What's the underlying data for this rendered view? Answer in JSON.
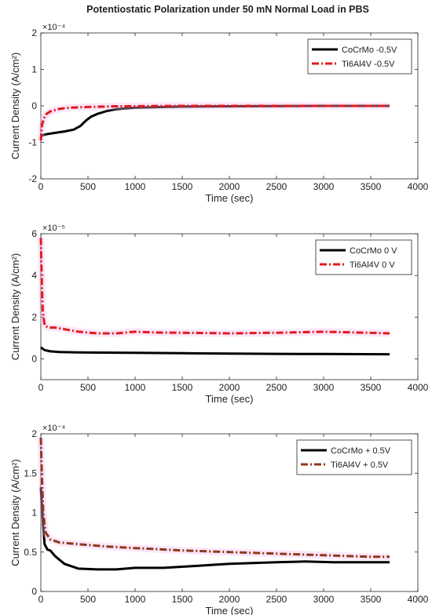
{
  "figure": {
    "title": "Potentiostatic Polarization under 50 mN Normal Load in PBS"
  },
  "chart_data": [
    {
      "type": "line",
      "xlabel": "Time (sec)",
      "ylabel": "Current Density (A/cm²)",
      "exponent": "×10⁻⁴",
      "y_scale_factor": 0.0001,
      "xlim": [
        0,
        4000
      ],
      "ylim": [
        -2,
        2
      ],
      "xticks": [
        0,
        500,
        1000,
        1500,
        2000,
        2500,
        3000,
        3500,
        4000
      ],
      "yticks": [
        -2,
        -1,
        0,
        1,
        2
      ],
      "ytick_labels": [
        "-2",
        "-1",
        "0",
        "1",
        "2"
      ],
      "legend": "top-right",
      "grid": false,
      "series": [
        {
          "name": "CoCrMo -0.5V",
          "color": "#000000",
          "dash": "solid",
          "points": [
            [
              0,
              -0.82
            ],
            [
              50,
              -0.78
            ],
            [
              150,
              -0.74
            ],
            [
              250,
              -0.7
            ],
            [
              350,
              -0.65
            ],
            [
              420,
              -0.55
            ],
            [
              480,
              -0.4
            ],
            [
              530,
              -0.3
            ],
            [
              600,
              -0.22
            ],
            [
              700,
              -0.14
            ],
            [
              800,
              -0.09
            ],
            [
              1000,
              -0.05
            ],
            [
              1500,
              -0.02
            ],
            [
              2000,
              -0.01
            ],
            [
              3000,
              0.0
            ],
            [
              3700,
              0.0
            ]
          ]
        },
        {
          "name": "Ti6Al4V -0.5V",
          "color": "#e31a1c",
          "dash": "dashdot",
          "points": [
            [
              0,
              -0.95
            ],
            [
              10,
              -0.55
            ],
            [
              30,
              -0.35
            ],
            [
              60,
              -0.22
            ],
            [
              100,
              -0.15
            ],
            [
              200,
              -0.08
            ],
            [
              300,
              -0.05
            ],
            [
              500,
              -0.03
            ],
            [
              800,
              -0.01
            ],
            [
              1500,
              0.0
            ],
            [
              3700,
              0.0
            ]
          ]
        }
      ]
    },
    {
      "type": "line",
      "xlabel": "Time (sec)",
      "ylabel": "Current Density (A/cm²)",
      "exponent": "×10⁻⁵",
      "y_scale_factor": 1e-05,
      "xlim": [
        0,
        4000
      ],
      "ylim": [
        -1,
        6
      ],
      "xticks": [
        0,
        500,
        1000,
        1500,
        2000,
        2500,
        3000,
        3500,
        4000
      ],
      "yticks": [
        0,
        2,
        4,
        6
      ],
      "ytick_labels": [
        "0",
        "2",
        "4",
        "6"
      ],
      "legend": "top-right",
      "grid": false,
      "series": [
        {
          "name": "CoCrMo 0 V",
          "color": "#000000",
          "dash": "solid",
          "points": [
            [
              0,
              0.55
            ],
            [
              40,
              0.42
            ],
            [
              100,
              0.36
            ],
            [
              200,
              0.33
            ],
            [
              400,
              0.31
            ],
            [
              600,
              0.3
            ],
            [
              1000,
              0.29
            ],
            [
              1500,
              0.27
            ],
            [
              2000,
              0.25
            ],
            [
              2500,
              0.24
            ],
            [
              3000,
              0.23
            ],
            [
              3700,
              0.22
            ]
          ]
        },
        {
          "name": "Ti6Al4V 0 V",
          "color": "#e31a1c",
          "dash": "dashdot",
          "points": [
            [
              0,
              5.8
            ],
            [
              8,
              4.0
            ],
            [
              20,
              2.3
            ],
            [
              40,
              1.6
            ],
            [
              80,
              1.5
            ],
            [
              150,
              1.5
            ],
            [
              250,
              1.42
            ],
            [
              400,
              1.3
            ],
            [
              600,
              1.22
            ],
            [
              800,
              1.22
            ],
            [
              1000,
              1.3
            ],
            [
              1200,
              1.26
            ],
            [
              1500,
              1.25
            ],
            [
              2000,
              1.22
            ],
            [
              2500,
              1.25
            ],
            [
              3000,
              1.3
            ],
            [
              3300,
              1.27
            ],
            [
              3700,
              1.22
            ]
          ]
        }
      ]
    },
    {
      "type": "line",
      "xlabel": "Time (sec)",
      "ylabel": "Current Density (A/cm²)",
      "exponent": "×10⁻⁴",
      "y_scale_factor": 0.0001,
      "xlim": [
        0,
        4000
      ],
      "ylim": [
        0,
        2
      ],
      "xticks": [
        0,
        500,
        1000,
        1500,
        2000,
        2500,
        3000,
        3500,
        4000
      ],
      "yticks": [
        0,
        0.5,
        1,
        1.5,
        2
      ],
      "ytick_labels": [
        "0",
        "0.5",
        "1",
        "1.5",
        "2"
      ],
      "legend": "top-right",
      "grid": false,
      "series": [
        {
          "name": "CoCrMo + 0.5V",
          "color": "#000000",
          "dash": "solid",
          "points": [
            [
              0,
              1.32
            ],
            [
              20,
              0.9
            ],
            [
              40,
              0.6
            ],
            [
              70,
              0.53
            ],
            [
              100,
              0.52
            ],
            [
              150,
              0.45
            ],
            [
              250,
              0.35
            ],
            [
              400,
              0.29
            ],
            [
              600,
              0.28
            ],
            [
              800,
              0.28
            ],
            [
              1000,
              0.3
            ],
            [
              1300,
              0.3
            ],
            [
              1600,
              0.32
            ],
            [
              2000,
              0.35
            ],
            [
              2500,
              0.37
            ],
            [
              2800,
              0.38
            ],
            [
              3100,
              0.37
            ],
            [
              3400,
              0.37
            ],
            [
              3700,
              0.37
            ]
          ]
        },
        {
          "name": "Ti6Al4V + 0.5V",
          "color": "#8b3a1a",
          "dash": "dashdot",
          "points": [
            [
              0,
              1.95
            ],
            [
              10,
              1.5
            ],
            [
              25,
              1.0
            ],
            [
              50,
              0.75
            ],
            [
              100,
              0.66
            ],
            [
              200,
              0.62
            ],
            [
              400,
              0.6
            ],
            [
              700,
              0.57
            ],
            [
              1000,
              0.55
            ],
            [
              1500,
              0.52
            ],
            [
              2000,
              0.5
            ],
            [
              2500,
              0.48
            ],
            [
              3000,
              0.46
            ],
            [
              3500,
              0.44
            ],
            [
              3700,
              0.44
            ]
          ]
        }
      ]
    }
  ]
}
